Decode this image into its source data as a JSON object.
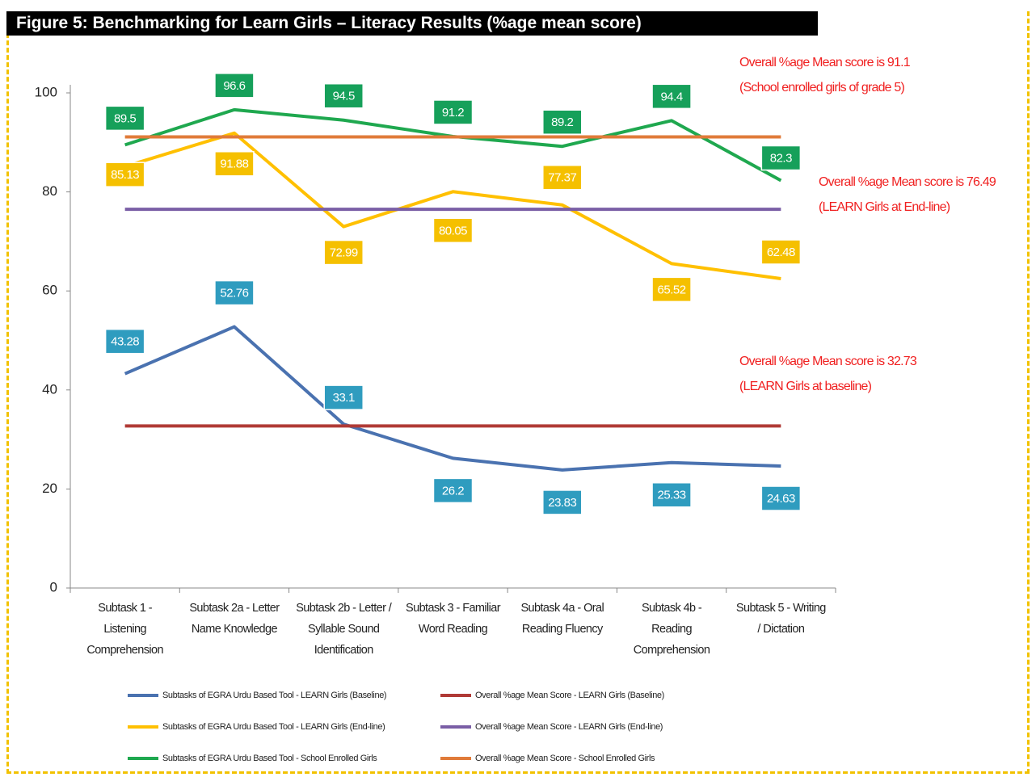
{
  "chart_data": {
    "type": "line",
    "title": "Figure 5: Benchmarking for Learn Girls – Literacy Results (%age mean score)",
    "categories": [
      "Subtask 1 -\nListening\nComprehension",
      "Subtask 2a - Letter\nName Knowledge",
      "Subtask 2b - Letter /\nSyllable Sound\nIdentification",
      "Subtask 3 - Familiar\nWord Reading",
      "Subtask 4a - Oral\nReading Fluency",
      "Subtask 4b -\nReading\nComprehension",
      "Subtask 5 - Writing\n/ Dictation"
    ],
    "series": [
      {
        "name": "Subtasks of EGRA Urdu Based Tool - LEARN Girls (Baseline)",
        "color": "#4a72b0",
        "label_color": "#2f9cbf",
        "values": [
          43.28,
          52.76,
          33.1,
          26.2,
          23.83,
          25.33,
          24.63
        ]
      },
      {
        "name": "Subtasks of EGRA Urdu Based Tool - LEARN Girls (End-line)",
        "color": "#ffc000",
        "label_color": "#f5c000",
        "values": [
          85.13,
          91.88,
          72.99,
          80.05,
          77.37,
          65.52,
          62.48
        ]
      },
      {
        "name": "Subtasks of EGRA Urdu Based Tool - School Enrolled Girls",
        "color": "#1fa84f",
        "label_color": "#16a05a",
        "values": [
          89.5,
          96.6,
          94.5,
          91.2,
          89.2,
          94.4,
          82.3
        ]
      },
      {
        "name": "Overall %age Mean Score - LEARN Girls (Baseline)",
        "color": "#b03a36",
        "values": [
          32.73,
          32.73,
          32.73,
          32.73,
          32.73,
          32.73,
          32.73
        ]
      },
      {
        "name": "Overall %age Mean Score - LEARN Girls (End-line)",
        "color": "#7a5ea6",
        "values": [
          76.49,
          76.49,
          76.49,
          76.49,
          76.49,
          76.49,
          76.49
        ]
      },
      {
        "name": "Overall %age Mean Score - School Enrolled Girls",
        "color": "#e07b39",
        "values": [
          91.1,
          91.1,
          91.1,
          91.1,
          91.1,
          91.1,
          91.1
        ]
      }
    ],
    "annotations": [
      [
        "Overall %age Mean score is 91.1",
        "(School enrolled girls of grade 5)"
      ],
      [
        "Overall %age Mean score is 76.49",
        "(LEARN Girls at End-line)"
      ],
      [
        "Overall %age Mean score is 32.73",
        "(LEARN Girls at baseline)"
      ]
    ],
    "ylim": [
      0,
      100
    ],
    "yticks": [
      0,
      20,
      40,
      60,
      80,
      100
    ],
    "grid": false
  }
}
